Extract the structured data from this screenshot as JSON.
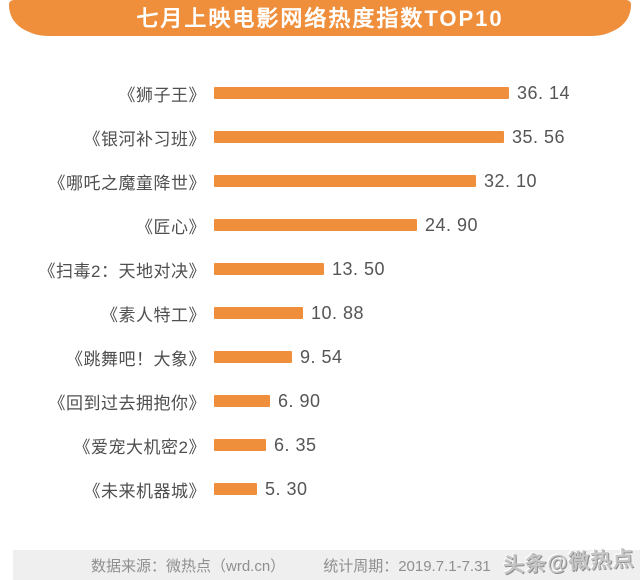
{
  "header": {
    "title": "七月上映电影网络热度指数TOP10"
  },
  "chart_data": {
    "type": "bar",
    "orientation": "horizontal",
    "title": "七月上映电影网络热度指数TOP10",
    "categories": [
      "《狮子王》",
      "《银河补习班》",
      "《哪吒之魔童降世》",
      "《匠心》",
      "《扫毒2：天地对决》",
      "《素人特工》",
      "《跳舞吧！大象》",
      "《回到过去拥抱你》",
      "《爱宠大机密2》",
      "《未来机器城》"
    ],
    "values": [
      36.14,
      35.56,
      32.1,
      24.9,
      13.5,
      10.88,
      9.54,
      6.9,
      6.35,
      5.3
    ],
    "value_labels": [
      "36. 14",
      "35. 56",
      "32. 10",
      "24. 90",
      "13. 50",
      "10. 88",
      "9. 54",
      "6. 90",
      "6. 35",
      "5. 30"
    ],
    "xlabel": "",
    "ylabel": "",
    "xlim": [
      0,
      36.14
    ],
    "axis_visible": false,
    "grid": false,
    "legend_position": "none",
    "bar_color": "#EF8E3B",
    "sorted": "descending"
  },
  "footer": {
    "source": "数据来源：微热点（wrd.cn）",
    "period": "统计周期：2019.7.1-7.31"
  },
  "watermark": {
    "text": "头条@微热点"
  },
  "colors": {
    "accent": "#EF8E3B",
    "banner_fill": "#EF8E3B",
    "title_text": "#FFFFFF",
    "label_text": "#4F4F4F",
    "value_text": "#555555",
    "footer_bg": "#EFEFEF",
    "footer_text": "#8F8F8F",
    "background": "#FFFFFF"
  }
}
